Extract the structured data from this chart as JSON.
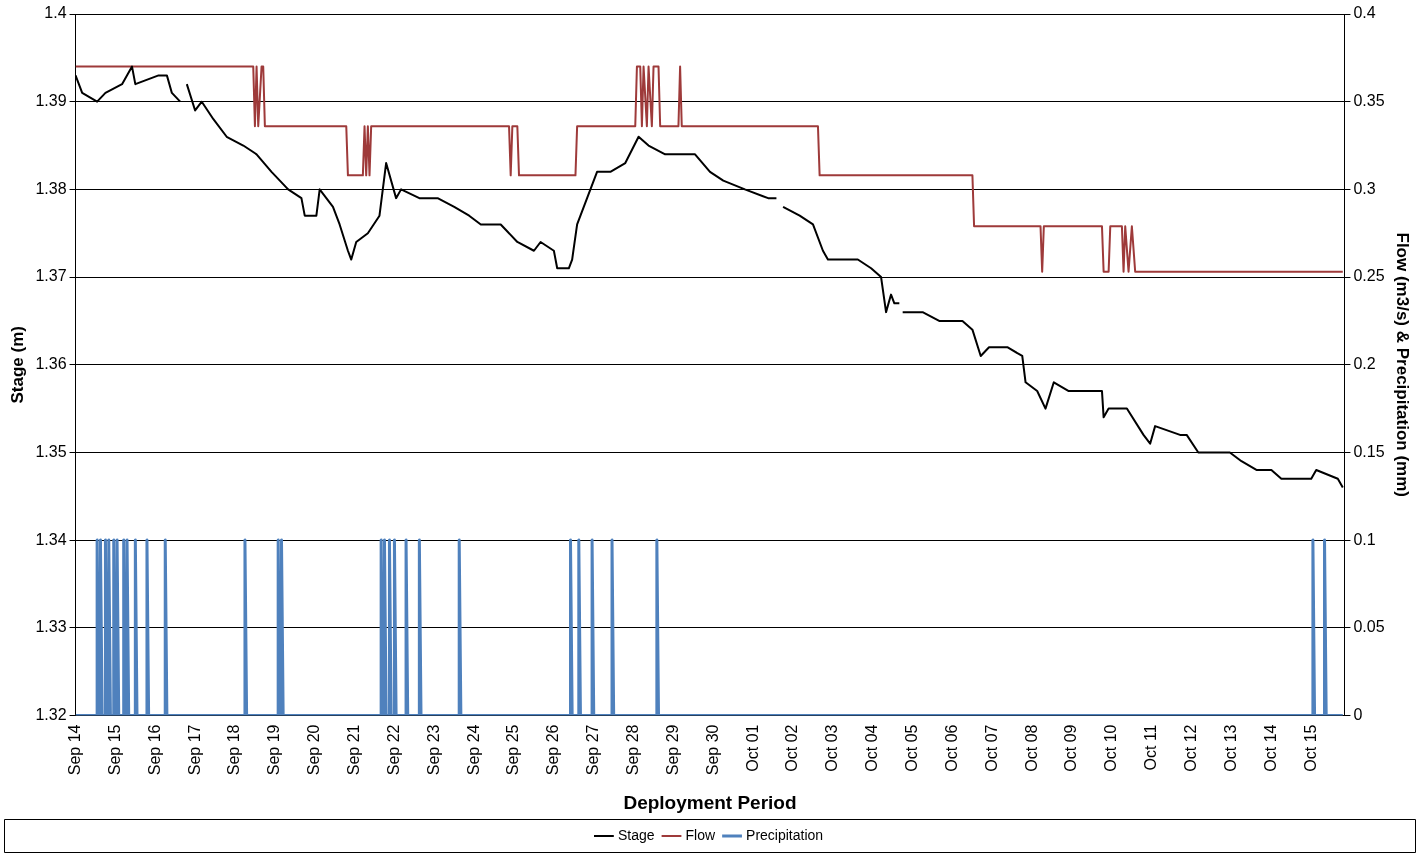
{
  "chart_data": {
    "type": "line",
    "xlabel": "Deployment Period",
    "ylabel": "Stage (m)",
    "y2label": "Flow (m3/s) & Precipitation (mm)",
    "xlim": [
      "--09-14T00:00",
      "--10-15T20:00"
    ],
    "xticks": [
      {
        "value": "--09-14",
        "label": "Sep 14"
      },
      {
        "value": "--09-15",
        "label": "Sep 15"
      },
      {
        "value": "--09-16",
        "label": "Sep 16"
      },
      {
        "value": "--09-17",
        "label": "Sep 17"
      },
      {
        "value": "--09-18",
        "label": "Sep 18"
      },
      {
        "value": "--09-19",
        "label": "Sep 19"
      },
      {
        "value": "--09-20",
        "label": "Sep 20"
      },
      {
        "value": "--09-21",
        "label": "Sep 21"
      },
      {
        "value": "--09-22",
        "label": "Sep 22"
      },
      {
        "value": "--09-23",
        "label": "Sep 23"
      },
      {
        "value": "--09-24",
        "label": "Sep 24"
      },
      {
        "value": "--09-25",
        "label": "Sep 25"
      },
      {
        "value": "--09-26",
        "label": "Sep 26"
      },
      {
        "value": "--09-27",
        "label": "Sep 27"
      },
      {
        "value": "--09-28",
        "label": "Sep 28"
      },
      {
        "value": "--09-29",
        "label": "Sep 29"
      },
      {
        "value": "--09-30",
        "label": "Sep 30"
      },
      {
        "value": "--10-01",
        "label": "Oct 01"
      },
      {
        "value": "--10-02",
        "label": "Oct 02"
      },
      {
        "value": "--10-03",
        "label": "Oct 03"
      },
      {
        "value": "--10-04",
        "label": "Oct 04"
      },
      {
        "value": "--10-05",
        "label": "Oct 05"
      },
      {
        "value": "--10-06",
        "label": "Oct 06"
      },
      {
        "value": "--10-07",
        "label": "Oct 07"
      },
      {
        "value": "--10-08",
        "label": "Oct 08"
      },
      {
        "value": "--10-09",
        "label": "Oct 09"
      },
      {
        "value": "--10-10",
        "label": "Oct 10"
      },
      {
        "value": "--10-11",
        "label": "Oct 11"
      },
      {
        "value": "--10-12",
        "label": "Oct 12"
      },
      {
        "value": "--10-13",
        "label": "Oct 13"
      },
      {
        "value": "--10-14",
        "label": "Oct 14"
      },
      {
        "value": "--10-15",
        "label": "Oct 15"
      }
    ],
    "ylim": [
      1.32,
      1.4
    ],
    "yticks": [
      1.32,
      1.33,
      1.34,
      1.35,
      1.36,
      1.37,
      1.38,
      1.39,
      1.4
    ],
    "y2lim": [
      0,
      0.4
    ],
    "y2ticks": [
      0,
      0.05,
      0.1,
      0.15,
      0.2,
      0.25,
      0.3,
      0.35,
      0.4
    ],
    "grid": "y",
    "legend": "bottom",
    "marker": "none",
    "line_style": "solid",
    "series": [
      {
        "name": "Stage",
        "color": "#000000",
        "x": [
          "--09-14T00:00",
          "--09-14T04:00",
          "--09-14T13:00",
          "--09-14T18:00",
          "--09-15T04:00",
          "--09-15T10:00",
          "--09-15T12:00",
          "--09-16T02:00",
          "--09-16T07:00",
          "--09-16T10:00",
          "--09-16T15:00",
          "--09-16T16:00",
          "--09-16T19:00",
          "--09-17T00:00",
          "--09-17T04:00",
          "--09-17T11:00",
          "--09-17T19:00",
          "--09-18T05:00",
          "--09-18T13:00",
          "--09-18T22:00",
          "--09-19T08:00",
          "--09-19T16:00",
          "--09-19T18:00",
          "--09-20T01:00",
          "--09-20T03:00",
          "--09-20T11:00",
          "--09-20T15:00",
          "--09-20T20:00",
          "--09-20T22:00",
          "--09-21T01:00",
          "--09-21T08:00",
          "--09-21T15:00",
          "--09-21T19:00",
          "--09-22T01:00",
          "--09-22T04:00",
          "--09-22T15:00",
          "--09-23T02:00",
          "--09-23T12:00",
          "--09-23T21:00",
          "--09-24T04:00",
          "--09-24T16:00",
          "--09-25T02:00",
          "--09-25T12:00",
          "--09-25T16:00",
          "--09-26T00:00",
          "--09-26T02:00",
          "--09-26T09:00",
          "--09-26T11:00",
          "--09-26T14:00",
          "--09-26T20:00",
          "--09-27T02:00",
          "--09-27T10:00",
          "--09-27T19:00",
          "--09-28T03:00",
          "--09-28T09:00",
          "--09-28T19:00",
          "--09-29T13:00",
          "--09-29T22:00",
          "--09-30T06:00",
          "--09-30T19:00",
          "--10-01T09:00",
          "--10-01T14:00",
          "--10-01T16:00",
          "--10-01T18:00",
          "--10-02T04:00",
          "--10-02T12:00",
          "--10-02T18:00",
          "--10-02T21:00",
          "--10-03T02:00",
          "--10-03T15:00",
          "--10-03T23:00",
          "--10-04T05:00",
          "--10-04T08:00",
          "--10-04T11:00",
          "--10-04T13:00",
          "--10-04T16:00",
          "--10-04T17:00",
          "--10-04T18:00",
          "--10-05T06:00",
          "--10-05T16:00",
          "--10-06T06:00",
          "--10-06T12:00",
          "--10-06T17:00",
          "--10-06T22:00",
          "--10-07T09:00",
          "--10-07T18:00",
          "--10-07T20:00",
          "--10-08T03:00",
          "--10-08T08:00",
          "--10-08T13:00",
          "--10-08T22:00",
          "--10-09T18:00",
          "--10-09T19:00",
          "--10-09T22:00",
          "--10-10T09:00",
          "--10-10T19:00",
          "--10-10T23:00",
          "--10-11T02:00",
          "--10-11T17:00",
          "--10-11T21:00",
          "--10-12T04:00",
          "--10-12T13:00",
          "--10-12T23:00",
          "--10-13T06:00",
          "--10-13T15:00",
          "--10-14T00:00",
          "--10-14T06:00",
          "--10-15T00:00",
          "--10-15T03:00",
          "--10-15T16:00",
          "--10-15T19:00"
        ],
        "values": [
          1.393,
          1.391,
          1.39,
          1.391,
          1.392,
          1.394,
          1.392,
          1.393,
          1.393,
          1.391,
          1.39,
          null,
          1.392,
          1.389,
          1.39,
          1.388,
          1.386,
          1.385,
          1.384,
          1.382,
          1.38,
          1.379,
          1.377,
          1.377,
          1.38,
          1.378,
          1.376,
          1.373,
          1.372,
          1.374,
          1.375,
          1.377,
          1.383,
          1.379,
          1.38,
          1.379,
          1.379,
          1.378,
          1.377,
          1.376,
          1.376,
          1.374,
          1.373,
          1.374,
          1.373,
          1.371,
          1.371,
          1.372,
          1.376,
          1.379,
          1.382,
          1.382,
          1.383,
          1.386,
          1.385,
          1.384,
          1.384,
          1.382,
          1.381,
          1.38,
          1.379,
          1.379,
          null,
          1.378,
          1.377,
          1.376,
          1.373,
          1.372,
          1.372,
          1.372,
          1.371,
          1.37,
          1.366,
          1.368,
          1.367,
          1.367,
          null,
          1.366,
          1.366,
          1.365,
          1.365,
          1.364,
          1.361,
          1.362,
          1.362,
          1.361,
          1.358,
          1.357,
          1.355,
          1.358,
          1.357,
          1.357,
          1.354,
          1.355,
          1.355,
          1.352,
          1.351,
          1.353,
          1.352,
          1.352,
          1.35,
          1.35,
          1.35,
          1.349,
          1.348,
          1.348,
          1.347,
          1.347,
          1.348,
          1.347,
          1.346
        ]
      },
      {
        "name": "Flow",
        "color": "#9e3a3a",
        "axis": "y2",
        "x": [
          "--09-14T00:00",
          "--09-18T11:00",
          "--09-18T12:00",
          "--09-18T13:00",
          "--09-18T14:00",
          "--09-18T16:00",
          "--09-18T17:00",
          "--09-18T18:00",
          "--09-20T19:00",
          "--09-20T20:00",
          "--09-21T05:00",
          "--09-21T06:00",
          "--09-21T07:00",
          "--09-21T08:00",
          "--09-21T09:00",
          "--09-21T10:00",
          "--09-24T21:00",
          "--09-24T22:00",
          "--09-24T23:00",
          "--09-25T02:00",
          "--09-25T03:00",
          "--09-26T13:00",
          "--09-26T14:00",
          "--09-28T01:00",
          "--09-28T02:00",
          "--09-28T04:00",
          "--09-28T05:00",
          "--09-28T06:00",
          "--09-28T08:00",
          "--09-28T09:00",
          "--09-28T11:00",
          "--09-28T12:00",
          "--09-28T15:00",
          "--09-28T16:00",
          "--09-29T03:00",
          "--09-29T04:00",
          "--09-29T05:00",
          "--10-02T15:00",
          "--10-02T16:00",
          "--10-06T12:00",
          "--10-06T13:00",
          "--10-08T05:00",
          "--10-08T06:00",
          "--10-08T07:00",
          "--10-09T18:00",
          "--10-09T19:00",
          "--10-09T22:00",
          "--10-09T23:00",
          "--10-10T06:00",
          "--10-10T07:00",
          "--10-10T08:00",
          "--10-10T10:00",
          "--10-10T12:00",
          "--10-10T14:00",
          "--10-15T19:00"
        ],
        "values": [
          0.37,
          0.37,
          0.336,
          0.37,
          0.336,
          0.37,
          0.37,
          0.336,
          0.336,
          0.308,
          0.308,
          0.336,
          0.308,
          0.336,
          0.308,
          0.336,
          0.336,
          0.308,
          0.336,
          0.336,
          0.308,
          0.308,
          0.336,
          0.336,
          0.37,
          0.37,
          0.336,
          0.37,
          0.336,
          0.37,
          0.336,
          0.37,
          0.37,
          0.336,
          0.336,
          0.37,
          0.336,
          0.336,
          0.308,
          0.308,
          0.279,
          0.279,
          0.253,
          0.279,
          0.279,
          0.253,
          0.253,
          0.279,
          0.279,
          0.253,
          0.279,
          0.253,
          0.279,
          0.253,
          0.253
        ]
      },
      {
        "name": "Precipitation",
        "color": "#4f81bd",
        "axis": "y2",
        "x": [
          "--09-14T00:00",
          "--09-14T13:00",
          "--09-14T13:00",
          "--09-14T14:00",
          "--09-14T15:00",
          "--09-14T15:00",
          "--09-14T16:00",
          "--09-14T18:00",
          "--09-14T18:00",
          "--09-14T19:00",
          "--09-14T20:00",
          "--09-14T20:00",
          "--09-14T21:00",
          "--09-14T23:00",
          "--09-14T23:00",
          "--09-15T00:00",
          "--09-15T01:00",
          "--09-15T01:00",
          "--09-15T02:00",
          "--09-15T05:00",
          "--09-15T05:00",
          "--09-15T06:00",
          "--09-15T07:00",
          "--09-15T07:00",
          "--09-15T08:00",
          "--09-15T12:00",
          "--09-15T12:00",
          "--09-15T13:00",
          "--09-15T19:00",
          "--09-15T19:00",
          "--09-15T20:00",
          "--09-16T06:00",
          "--09-16T06:00",
          "--09-16T07:00",
          "--09-18T06:00",
          "--09-18T06:00",
          "--09-18T07:00",
          "--09-19T02:00",
          "--09-19T02:00",
          "--09-19T03:00",
          "--09-19T04:00",
          "--09-19T04:00",
          "--09-19T05:00",
          "--09-21T16:00",
          "--09-21T16:00",
          "--09-21T17:00",
          "--09-21T18:00",
          "--09-21T18:00",
          "--09-21T19:00",
          "--09-21T21:00",
          "--09-21T21:00",
          "--09-21T22:00",
          "--09-22T00:00",
          "--09-22T00:00",
          "--09-22T01:00",
          "--09-22T07:00",
          "--09-22T07:00",
          "--09-22T08:00",
          "--09-22T15:00",
          "--09-22T15:00",
          "--09-22T16:00",
          "--09-23T15:00",
          "--09-23T15:00",
          "--09-23T16:00",
          "--09-26T10:00",
          "--09-26T10:00",
          "--09-26T11:00",
          "--09-26T15:00",
          "--09-26T15:00",
          "--09-26T16:00",
          "--09-26T23:00",
          "--09-26T23:00",
          "--09-27T00:00",
          "--09-27T11:00",
          "--09-27T11:00",
          "--09-27T12:00",
          "--09-28T14:00",
          "--09-28T14:00",
          "--09-28T15:00",
          "--10-15T01:00",
          "--10-15T01:00",
          "--10-15T02:00",
          "--10-15T08:00",
          "--10-15T08:00",
          "--10-15T09:00",
          "--10-15T19:00"
        ],
        "values": [
          0,
          0,
          0.1,
          0,
          0,
          0.1,
          0,
          0,
          0.1,
          0,
          0,
          0.1,
          0,
          0,
          0.1,
          0,
          0,
          0.1,
          0,
          0,
          0.1,
          0,
          0,
          0.1,
          0,
          0,
          0.1,
          0,
          0,
          0.1,
          0,
          0,
          0.1,
          0,
          0,
          0.1,
          0,
          0,
          0.1,
          0,
          0,
          0.1,
          0,
          0,
          0.1,
          0,
          0,
          0.1,
          0,
          0,
          0.1,
          0,
          0,
          0.1,
          0,
          0,
          0.1,
          0,
          0,
          0.1,
          0,
          0,
          0.1,
          0,
          0,
          0.1,
          0,
          0,
          0.1,
          0,
          0,
          0.1,
          0,
          0,
          0.1,
          0,
          0,
          0.1,
          0,
          0,
          0.1,
          0,
          0,
          0.1,
          0,
          0
        ]
      }
    ]
  }
}
